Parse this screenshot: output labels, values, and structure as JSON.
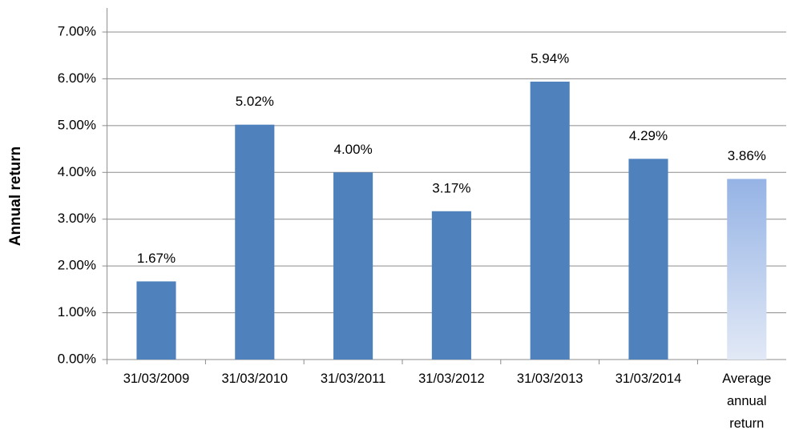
{
  "chart_data": {
    "type": "bar",
    "y_axis_title": "Annual return",
    "categories": [
      "31/03/2009",
      "31/03/2010",
      "31/03/2011",
      "31/03/2012",
      "31/03/2013",
      "31/03/2014",
      "Average annual return"
    ],
    "values": [
      1.67,
      5.02,
      4.0,
      3.17,
      5.94,
      4.29,
      3.86
    ],
    "value_labels": [
      "1.67%",
      "5.02%",
      "4.00%",
      "3.17%",
      "5.94%",
      "4.29%",
      "3.86%"
    ],
    "colors": [
      "#4f81bd",
      "#4f81bd",
      "#4f81bd",
      "#4f81bd",
      "#4f81bd",
      "#4f81bd",
      [
        "#95b3e5",
        "#e2e9f6"
      ]
    ],
    "ylim": [
      0,
      7
    ],
    "yticks": [
      {
        "value": 0,
        "label": "0.00%"
      },
      {
        "value": 1,
        "label": "1.00%"
      },
      {
        "value": 2,
        "label": "2.00%"
      },
      {
        "value": 3,
        "label": "3.00%"
      },
      {
        "value": 4,
        "label": "4.00%"
      },
      {
        "value": 5,
        "label": "5.00%"
      },
      {
        "value": 6,
        "label": "6.00%"
      },
      {
        "value": 7,
        "label": "7.00%"
      }
    ],
    "grid": true
  }
}
